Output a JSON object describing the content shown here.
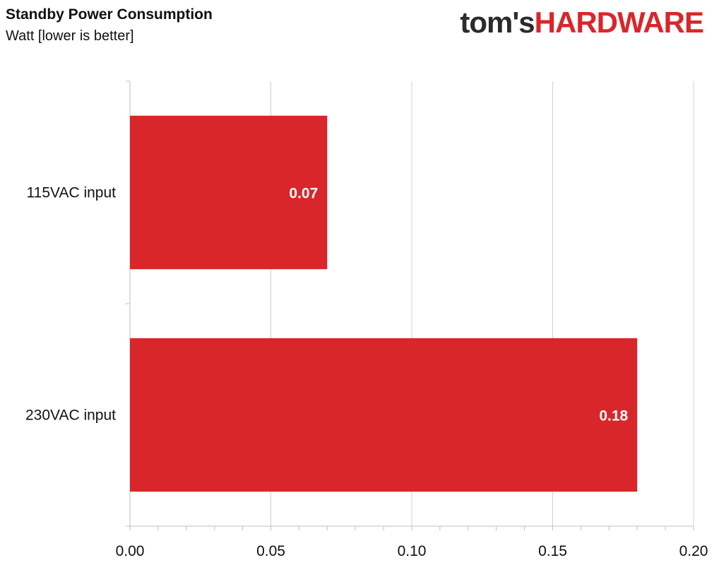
{
  "header": {
    "title": "Standby Power Consumption",
    "subtitle": "Watt [lower is better]",
    "logo_part1": "tom's",
    "logo_part2": "HARDWARE"
  },
  "colors": {
    "bar": "#d9262b",
    "grid": "#d0d0d0",
    "axis": "#bfbfbf",
    "text": "#111111",
    "label": "#ffffff"
  },
  "chart_data": {
    "type": "bar",
    "orientation": "horizontal",
    "categories": [
      "115VAC input",
      "230VAC input"
    ],
    "values": [
      0.07,
      0.18
    ],
    "data_labels": [
      "0.07",
      "0.18"
    ],
    "xlim": [
      0,
      0.2
    ],
    "xticks": [
      0,
      0.05,
      0.1,
      0.15,
      0.2
    ],
    "xtick_labels": [
      "0.00",
      "0.05",
      "0.10",
      "0.15",
      "0.20"
    ],
    "grid": true
  }
}
